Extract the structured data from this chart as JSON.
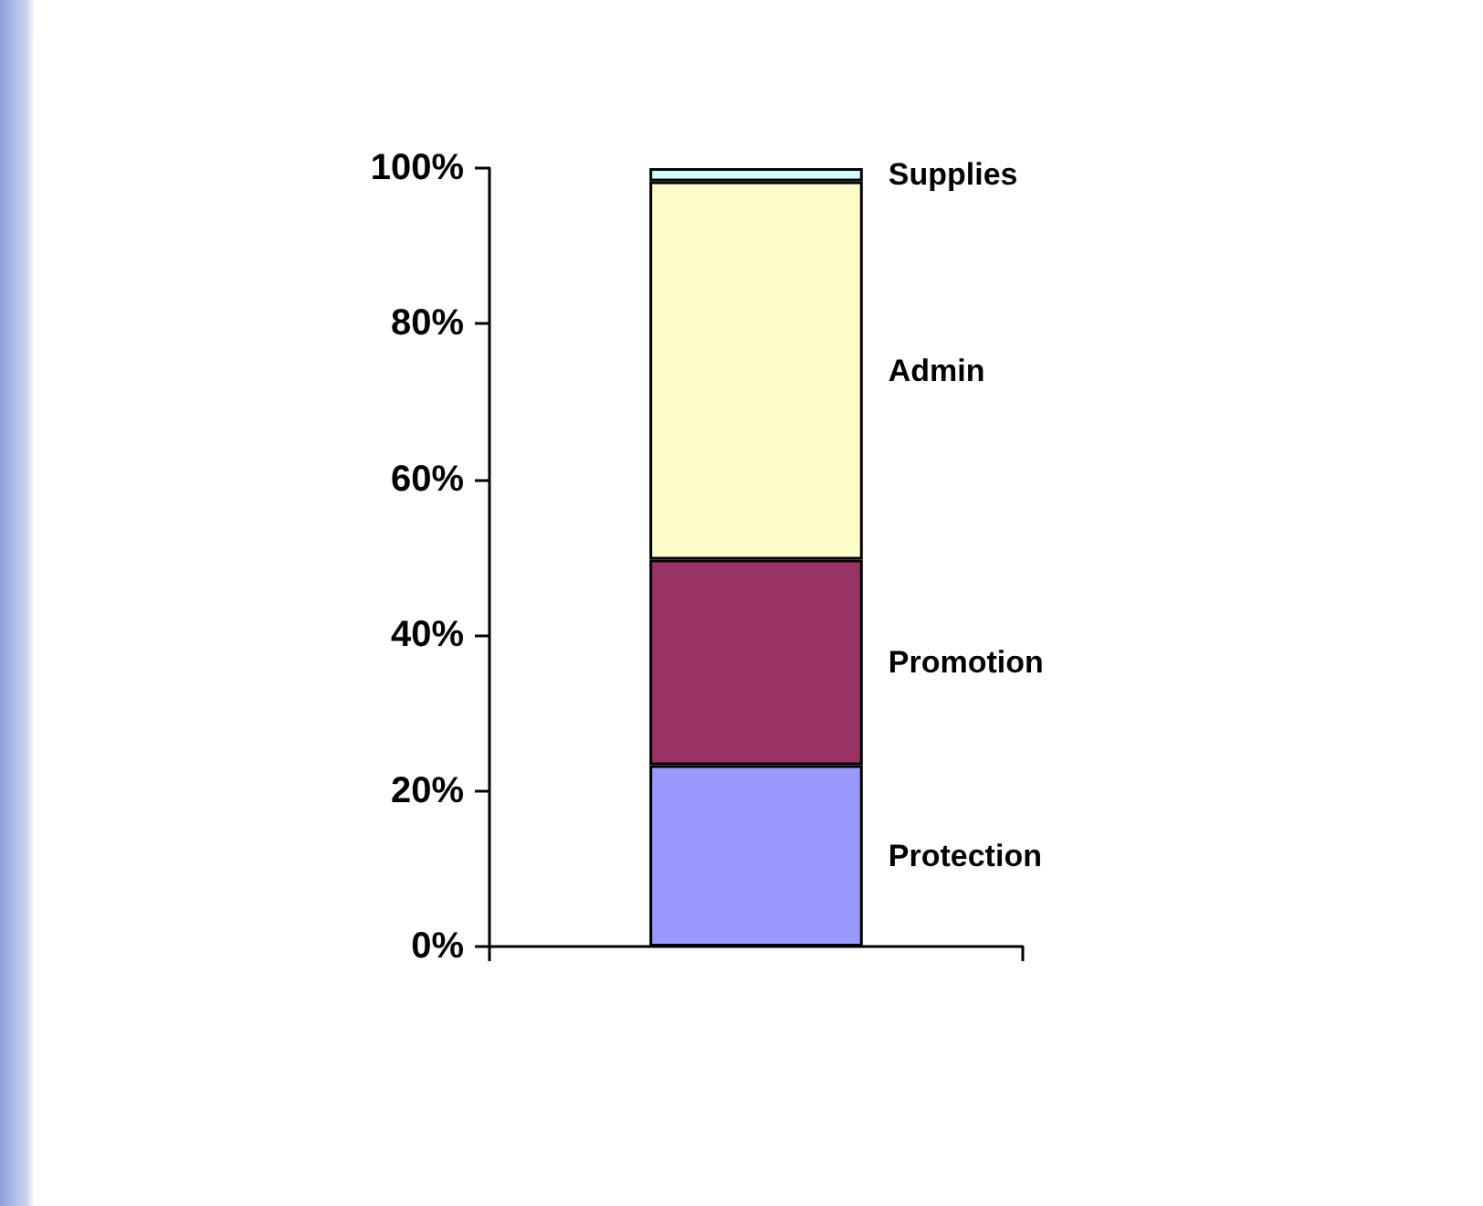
{
  "chart_data": {
    "type": "bar",
    "stacked": true,
    "categories": [
      null
    ],
    "series": [
      {
        "name": "Protection",
        "color": "#9999ff",
        "values": [
          23.3
        ]
      },
      {
        "name": "Promotion",
        "color": "#993366",
        "values": [
          26.4
        ]
      },
      {
        "name": "Admin",
        "color": "#ffffcc",
        "values": [
          48.6
        ]
      },
      {
        "name": "Supplies",
        "color": "#ccffff",
        "values": [
          1.7
        ]
      }
    ],
    "ylim": [
      0,
      100
    ],
    "yticks": [
      {
        "value": 0,
        "label": "0%"
      },
      {
        "value": 20,
        "label": "20%"
      },
      {
        "value": 40,
        "label": "40%"
      },
      {
        "value": 60,
        "label": "60%"
      },
      {
        "value": 80,
        "label": "80%"
      },
      {
        "value": 100,
        "label": "100%"
      }
    ],
    "grid": false,
    "legend": false
  }
}
